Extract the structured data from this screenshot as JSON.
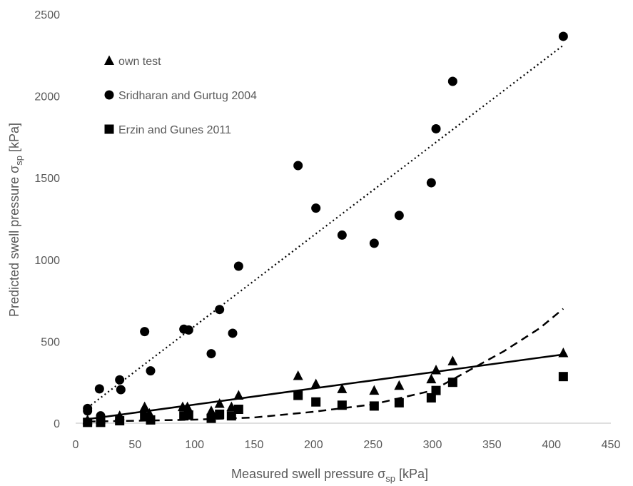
{
  "chart_data": {
    "type": "scatter",
    "xlabel": "Measured swell pressure σsp [kPa]",
    "ylabel": "Predicted swell pressure σsp [kPa]",
    "xlabel_parts": {
      "main": "Measured swell pressure σ",
      "sub": "sp",
      "unit": " [kPa]"
    },
    "ylabel_parts": {
      "main": "Predicted swell pressure σ",
      "sub": "sp",
      "unit": " [kPa]"
    },
    "xlim": [
      0,
      450
    ],
    "ylim": [
      0,
      2500
    ],
    "x_ticks": [
      0,
      50,
      100,
      150,
      200,
      250,
      300,
      350,
      400,
      450
    ],
    "y_ticks": [
      0,
      500,
      1000,
      1500,
      2000,
      2500
    ],
    "x_tick_labels": [
      "0",
      "50",
      "100",
      "150",
      "200",
      "250",
      "300",
      "350",
      "400",
      "450"
    ],
    "y_tick_labels": [
      "0",
      "500",
      "1000",
      "1500",
      "2000",
      "2500"
    ],
    "grid": false,
    "legend_position": "top-left",
    "series": [
      {
        "name": "own test",
        "marker": "triangle",
        "color": "#000000",
        "trendline": "linear-solid",
        "points": [
          [
            10,
            20
          ],
          [
            21,
            25
          ],
          [
            37,
            45
          ],
          [
            58,
            100
          ],
          [
            62,
            60
          ],
          [
            90,
            100
          ],
          [
            94,
            100
          ],
          [
            114,
            75
          ],
          [
            121,
            120
          ],
          [
            131,
            100
          ],
          [
            137,
            170
          ],
          [
            187,
            290
          ],
          [
            202,
            240
          ],
          [
            224,
            210
          ],
          [
            251,
            200
          ],
          [
            272,
            230
          ],
          [
            299,
            270
          ],
          [
            303,
            325
          ],
          [
            317,
            380
          ],
          [
            410,
            430
          ]
        ]
      },
      {
        "name": "Sridharan and Gurtug 2004",
        "marker": "circle",
        "color": "#000000",
        "trendline": "linear-dotted",
        "points": [
          [
            10,
            90
          ],
          [
            10,
            75
          ],
          [
            20,
            210
          ],
          [
            21,
            45
          ],
          [
            37,
            265
          ],
          [
            38,
            205
          ],
          [
            58,
            560
          ],
          [
            63,
            320
          ],
          [
            91,
            575
          ],
          [
            95,
            570
          ],
          [
            114,
            425
          ],
          [
            121,
            695
          ],
          [
            132,
            550
          ],
          [
            137,
            960
          ],
          [
            187,
            1575
          ],
          [
            202,
            1315
          ],
          [
            224,
            1150
          ],
          [
            251,
            1100
          ],
          [
            272,
            1270
          ],
          [
            299,
            1470
          ],
          [
            303,
            1800
          ],
          [
            317,
            2090
          ],
          [
            410,
            2365
          ]
        ]
      },
      {
        "name": "Erzin and Gunes 2011",
        "marker": "square",
        "color": "#000000",
        "trendline": "exponential-dashed",
        "points": [
          [
            10,
            5
          ],
          [
            21,
            5
          ],
          [
            37,
            15
          ],
          [
            58,
            40
          ],
          [
            63,
            20
          ],
          [
            91,
            45
          ],
          [
            95,
            50
          ],
          [
            114,
            30
          ],
          [
            121,
            55
          ],
          [
            131,
            45
          ],
          [
            137,
            85
          ],
          [
            187,
            170
          ],
          [
            202,
            130
          ],
          [
            224,
            110
          ],
          [
            251,
            105
          ],
          [
            272,
            125
          ],
          [
            299,
            155
          ],
          [
            303,
            200
          ],
          [
            317,
            250
          ],
          [
            410,
            285
          ]
        ]
      }
    ],
    "trendlines": {
      "own test": {
        "type": "linear",
        "style": "solid",
        "from": [
          10,
          25
        ],
        "to": [
          410,
          420
        ]
      },
      "Sridharan and Gurtug 2004": {
        "type": "linear",
        "style": "dotted",
        "from": [
          10,
          95
        ],
        "to": [
          410,
          2310
        ]
      },
      "Erzin and Gunes 2011": {
        "type": "exponential",
        "style": "dashed",
        "points": [
          [
            10,
            10
          ],
          [
            50,
            15
          ],
          [
            100,
            22
          ],
          [
            150,
            35
          ],
          [
            200,
            70
          ],
          [
            250,
            115
          ],
          [
            300,
            200
          ],
          [
            330,
            320
          ],
          [
            360,
            440
          ],
          [
            390,
            580
          ],
          [
            410,
            700
          ]
        ]
      }
    }
  }
}
